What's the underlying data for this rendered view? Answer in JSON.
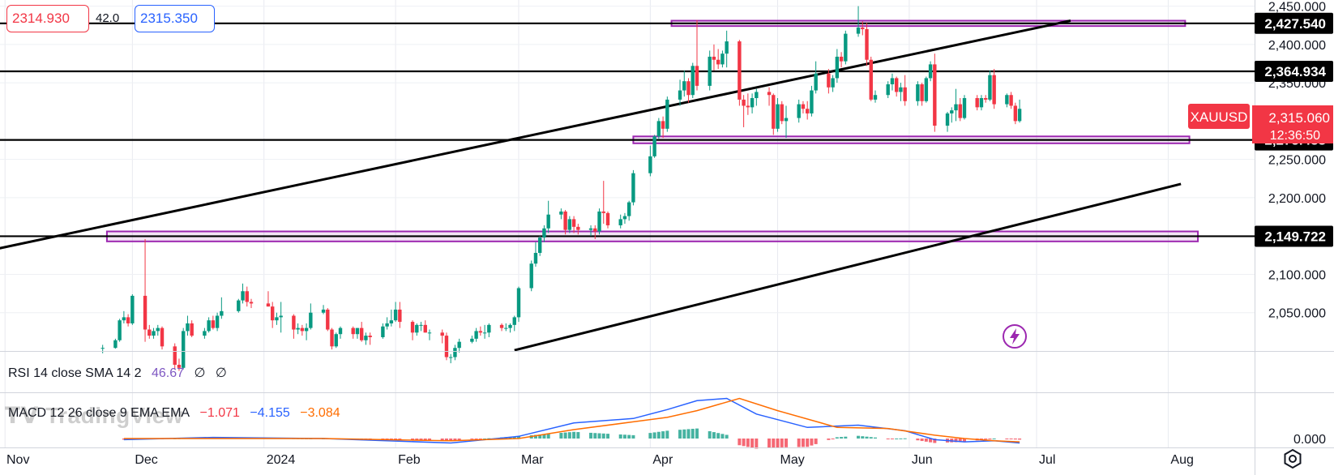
{
  "header": {
    "sell_price": "2314.930",
    "spread": "42.0",
    "buy_price": "2315.350"
  },
  "rsi": {
    "label": "RSI 14 close SMA 14 2",
    "value": "46.67",
    "v2": "∅",
    "v3": "∅"
  },
  "macd": {
    "label": "MACD 12 26 close 9 EMA EMA",
    "hist": "−1.071",
    "macd": "−4.155",
    "signal": "−3.084",
    "zero_label": "0.000"
  },
  "watermark": "TradingView",
  "icons": {
    "flash": "lightning-icon",
    "settings": "gear-icon"
  },
  "colors": {
    "up": "#089981",
    "down": "#f23645",
    "zone": "#9c27b0",
    "level": "#000000",
    "macd_line": "#2962ff",
    "signal_line": "#ff6d00",
    "label_bg": "#000000",
    "symbol_bg": "#f23645"
  },
  "chart_data": {
    "type": "candlestick",
    "symbol": "XAUUSD",
    "last_price": "2,315.060",
    "countdown": "12:36:50",
    "ylim": [
      2000,
      2458
    ],
    "y_ticks": [
      "2,450.000",
      "2,400.000",
      "2,350.000",
      "2,250.000",
      "2,200.000",
      "2,100.000",
      "2,050.000"
    ],
    "x_ticks": [
      "Nov",
      "Dec",
      "2024",
      "Feb",
      "Mar",
      "Apr",
      "May",
      "Jun",
      "Jul",
      "Aug"
    ],
    "levels": [
      "2,427.540",
      "2,364.934",
      "2,275.438",
      "2,149.722"
    ],
    "level_values": [
      2427.54,
      2364.934,
      2275.438,
      2149.722
    ],
    "zones": [
      {
        "from": "2024-04-06",
        "to": "2024-08-05",
        "low": 2424,
        "high": 2431
      },
      {
        "from": "2024-03-28",
        "to": "2024-08-06",
        "low": 2271,
        "high": 2280
      },
      {
        "from": "2023-11-25",
        "to": "2024-08-08",
        "low": 2143,
        "high": 2156
      }
    ],
    "trendlines": [
      {
        "from": [
          "2023-10-29",
          2132
        ],
        "to": [
          "2024-07-09",
          2431
        ]
      },
      {
        "from": [
          "2024-02-29",
          2001
        ],
        "to": [
          "2024-08-04",
          2218
        ]
      }
    ],
    "ohlc": [
      [
        "2023-11-24",
        2003,
        2008,
        1997,
        2004
      ],
      [
        "2023-11-27",
        2004,
        2016,
        2003,
        2014
      ],
      [
        "2023-11-28",
        2014,
        2042,
        2012,
        2040
      ],
      [
        "2023-11-29",
        2040,
        2052,
        2036,
        2044
      ],
      [
        "2023-11-30",
        2044,
        2048,
        2032,
        2036
      ],
      [
        "2023-12-01",
        2036,
        2074,
        2034,
        2072
      ],
      [
        "2023-12-04",
        2072,
        2146,
        2012,
        2028
      ],
      [
        "2023-12-05",
        2028,
        2034,
        2016,
        2020
      ],
      [
        "2023-12-06",
        2020,
        2030,
        2016,
        2026
      ],
      [
        "2023-12-07",
        2026,
        2034,
        2020,
        2030
      ],
      [
        "2023-12-08",
        2030,
        2032,
        2002,
        2006
      ],
      [
        "2023-12-11",
        2006,
        2010,
        1976,
        1982
      ],
      [
        "2023-12-12",
        1982,
        1990,
        1974,
        1978
      ],
      [
        "2023-12-13",
        1978,
        2030,
        1976,
        2026
      ],
      [
        "2023-12-14",
        2026,
        2046,
        2020,
        2036
      ],
      [
        "2023-12-15",
        2036,
        2040,
        2018,
        2020
      ],
      [
        "2023-12-18",
        2020,
        2030,
        2016,
        2026
      ],
      [
        "2023-12-19",
        2026,
        2044,
        2024,
        2040
      ],
      [
        "2023-12-20",
        2040,
        2046,
        2028,
        2030
      ],
      [
        "2023-12-21",
        2030,
        2050,
        2026,
        2046
      ],
      [
        "2023-12-22",
        2046,
        2070,
        2042,
        2052
      ],
      [
        "2023-12-26",
        2052,
        2068,
        2050,
        2066
      ],
      [
        "2023-12-27",
        2066,
        2088,
        2062,
        2078
      ],
      [
        "2023-12-28",
        2078,
        2084,
        2058,
        2064
      ],
      [
        "2023-12-29",
        2064,
        2068,
        2056,
        2062
      ],
      [
        "2024-01-02",
        2062,
        2078,
        2058,
        2058
      ],
      [
        "2024-01-03",
        2058,
        2064,
        2030,
        2040
      ],
      [
        "2024-01-04",
        2040,
        2050,
        2034,
        2044
      ],
      [
        "2024-01-05",
        2044,
        2064,
        2024,
        2046
      ],
      [
        "2024-01-08",
        2046,
        2048,
        2016,
        2028
      ],
      [
        "2024-01-09",
        2028,
        2036,
        2022,
        2030
      ],
      [
        "2024-01-10",
        2030,
        2034,
        2020,
        2026
      ],
      [
        "2024-01-11",
        2026,
        2036,
        2014,
        2030
      ],
      [
        "2024-01-12",
        2030,
        2062,
        2028,
        2050
      ],
      [
        "2024-01-15",
        2050,
        2060,
        2048,
        2054
      ],
      [
        "2024-01-16",
        2054,
        2056,
        2026,
        2028
      ],
      [
        "2024-01-17",
        2028,
        2030,
        2002,
        2006
      ],
      [
        "2024-01-18",
        2006,
        2024,
        2004,
        2022
      ],
      [
        "2024-01-19",
        2022,
        2032,
        2016,
        2030
      ],
      [
        "2024-01-22",
        2030,
        2032,
        2016,
        2022
      ],
      [
        "2024-01-23",
        2022,
        2030,
        2016,
        2030
      ],
      [
        "2024-01-24",
        2030,
        2038,
        2012,
        2014
      ],
      [
        "2024-01-25",
        2014,
        2024,
        2008,
        2020
      ],
      [
        "2024-01-26",
        2020,
        2024,
        2008,
        2018
      ],
      [
        "2024-01-29",
        2018,
        2036,
        2016,
        2032
      ],
      [
        "2024-01-30",
        2032,
        2044,
        2028,
        2036
      ],
      [
        "2024-01-31",
        2036,
        2054,
        2032,
        2040
      ],
      [
        "2024-02-01",
        2040,
        2064,
        2038,
        2054
      ],
      [
        "2024-02-02",
        2054,
        2064,
        2030,
        2038
      ],
      [
        "2024-02-05",
        2038,
        2040,
        2014,
        2024
      ],
      [
        "2024-02-06",
        2024,
        2036,
        2020,
        2034
      ],
      [
        "2024-02-07",
        2034,
        2038,
        2026,
        2034
      ],
      [
        "2024-02-08",
        2034,
        2040,
        2024,
        2024
      ],
      [
        "2024-02-09",
        2024,
        2028,
        2014,
        2024
      ],
      [
        "2024-02-12",
        2024,
        2028,
        2010,
        2020
      ],
      [
        "2024-02-13",
        2020,
        2024,
        1988,
        1992
      ],
      [
        "2024-02-14",
        1992,
        1996,
        1984,
        1992
      ],
      [
        "2024-02-15",
        1992,
        2008,
        1988,
        2004
      ],
      [
        "2024-02-16",
        2004,
        2016,
        1998,
        2012
      ],
      [
        "2024-02-19",
        2012,
        2020,
        2010,
        2016
      ],
      [
        "2024-02-20",
        2016,
        2030,
        2012,
        2026
      ],
      [
        "2024-02-21",
        2026,
        2032,
        2020,
        2024
      ],
      [
        "2024-02-22",
        2024,
        2034,
        2016,
        2024
      ],
      [
        "2024-02-23",
        2024,
        2036,
        2018,
        2034
      ],
      [
        "2024-02-26",
        2034,
        2036,
        2026,
        2030
      ],
      [
        "2024-02-27",
        2030,
        2036,
        2026,
        2030
      ],
      [
        "2024-02-28",
        2030,
        2036,
        2024,
        2034
      ],
      [
        "2024-02-29",
        2034,
        2046,
        2026,
        2044
      ],
      [
        "2024-03-01",
        2044,
        2084,
        2038,
        2082
      ],
      [
        "2024-03-04",
        2082,
        2118,
        2078,
        2114
      ],
      [
        "2024-03-05",
        2114,
        2142,
        2110,
        2128
      ],
      [
        "2024-03-06",
        2128,
        2150,
        2124,
        2148
      ],
      [
        "2024-03-07",
        2148,
        2164,
        2142,
        2160
      ],
      [
        "2024-03-08",
        2160,
        2196,
        2154,
        2178
      ],
      [
        "2024-03-11",
        2178,
        2186,
        2172,
        2182
      ],
      [
        "2024-03-12",
        2182,
        2184,
        2152,
        2158
      ],
      [
        "2024-03-13",
        2158,
        2176,
        2154,
        2172
      ],
      [
        "2024-03-14",
        2172,
        2176,
        2154,
        2162
      ],
      [
        "2024-03-15",
        2162,
        2166,
        2152,
        2158
      ],
      [
        "2024-03-18",
        2158,
        2164,
        2150,
        2160
      ],
      [
        "2024-03-19",
        2160,
        2164,
        2146,
        2156
      ],
      [
        "2024-03-20",
        2156,
        2186,
        2152,
        2182
      ],
      [
        "2024-03-21",
        2182,
        2222,
        2166,
        2180
      ],
      [
        "2024-03-22",
        2180,
        2182,
        2160,
        2164
      ],
      [
        "2024-03-25",
        2164,
        2178,
        2160,
        2172
      ],
      [
        "2024-03-26",
        2172,
        2180,
        2166,
        2176
      ],
      [
        "2024-03-27",
        2176,
        2196,
        2170,
        2194
      ],
      [
        "2024-03-28",
        2194,
        2236,
        2190,
        2232
      ],
      [
        "2024-04-01",
        2232,
        2268,
        2228,
        2254
      ],
      [
        "2024-04-02",
        2254,
        2282,
        2252,
        2280
      ],
      [
        "2024-04-03",
        2280,
        2304,
        2276,
        2300
      ],
      [
        "2024-04-04",
        2300,
        2306,
        2278,
        2290
      ],
      [
        "2024-04-05",
        2290,
        2332,
        2286,
        2328
      ],
      [
        "2024-04-08",
        2328,
        2354,
        2320,
        2340
      ],
      [
        "2024-04-09",
        2340,
        2366,
        2332,
        2352
      ],
      [
        "2024-04-10",
        2352,
        2356,
        2324,
        2334
      ],
      [
        "2024-04-11",
        2334,
        2376,
        2330,
        2372
      ],
      [
        "2024-04-12",
        2372,
        2432,
        2340,
        2346
      ],
      [
        "2024-04-15",
        2346,
        2392,
        2340,
        2384
      ],
      [
        "2024-04-16",
        2384,
        2400,
        2366,
        2380
      ],
      [
        "2024-04-17",
        2380,
        2394,
        2368,
        2374
      ],
      [
        "2024-04-18",
        2374,
        2392,
        2370,
        2388
      ],
      [
        "2024-04-19",
        2388,
        2418,
        2370,
        2404
      ],
      [
        "2024-04-22",
        2404,
        2406,
        2320,
        2328
      ],
      [
        "2024-04-23",
        2328,
        2334,
        2292,
        2320
      ],
      [
        "2024-04-24",
        2320,
        2336,
        2308,
        2318
      ],
      [
        "2024-04-25",
        2318,
        2336,
        2310,
        2330
      ],
      [
        "2024-04-26",
        2330,
        2342,
        2320,
        2338
      ],
      [
        "2024-04-29",
        2338,
        2344,
        2320,
        2334
      ],
      [
        "2024-04-30",
        2334,
        2336,
        2282,
        2290
      ],
      [
        "2024-05-01",
        2290,
        2330,
        2286,
        2322
      ],
      [
        "2024-05-02",
        2322,
        2326,
        2296,
        2300
      ],
      [
        "2024-05-03",
        2300,
        2320,
        2278,
        2304
      ],
      [
        "2024-05-06",
        2304,
        2328,
        2298,
        2322
      ],
      [
        "2024-05-07",
        2322,
        2326,
        2310,
        2316
      ],
      [
        "2024-05-08",
        2316,
        2326,
        2302,
        2310
      ],
      [
        "2024-05-09",
        2310,
        2346,
        2306,
        2340
      ],
      [
        "2024-05-10",
        2340,
        2378,
        2336,
        2362
      ],
      [
        "2024-05-13",
        2362,
        2368,
        2336,
        2344
      ],
      [
        "2024-05-14",
        2344,
        2360,
        2338,
        2356
      ],
      [
        "2024-05-15",
        2356,
        2394,
        2350,
        2384
      ],
      [
        "2024-05-16",
        2384,
        2390,
        2370,
        2378
      ],
      [
        "2024-05-17",
        2378,
        2418,
        2374,
        2414
      ],
      [
        "2024-05-20",
        2414,
        2450,
        2410,
        2422
      ],
      [
        "2024-05-21",
        2422,
        2430,
        2412,
        2420
      ],
      [
        "2024-05-22",
        2420,
        2428,
        2372,
        2380
      ],
      [
        "2024-05-23",
        2380,
        2384,
        2326,
        2328
      ],
      [
        "2024-05-24",
        2328,
        2340,
        2324,
        2334
      ],
      [
        "2024-05-27",
        2334,
        2352,
        2330,
        2348
      ],
      [
        "2024-05-28",
        2348,
        2362,
        2340,
        2356
      ],
      [
        "2024-05-29",
        2356,
        2358,
        2332,
        2338
      ],
      [
        "2024-05-30",
        2338,
        2350,
        2326,
        2344
      ],
      [
        "2024-05-31",
        2344,
        2360,
        2320,
        2326
      ],
      [
        "2024-06-03",
        2326,
        2352,
        2320,
        2348
      ],
      [
        "2024-06-04",
        2348,
        2350,
        2320,
        2326
      ],
      [
        "2024-06-05",
        2326,
        2358,
        2324,
        2356
      ],
      [
        "2024-06-06",
        2356,
        2378,
        2352,
        2374
      ],
      [
        "2024-06-07",
        2374,
        2388,
        2286,
        2294
      ],
      [
        "2024-06-10",
        2294,
        2312,
        2286,
        2310
      ],
      [
        "2024-06-11",
        2310,
        2318,
        2298,
        2314
      ],
      [
        "2024-06-12",
        2314,
        2342,
        2300,
        2322
      ],
      [
        "2024-06-13",
        2322,
        2330,
        2300,
        2304
      ],
      [
        "2024-06-14",
        2304,
        2334,
        2302,
        2330
      ],
      [
        "2024-06-17",
        2330,
        2334,
        2314,
        2318
      ],
      [
        "2024-06-18",
        2318,
        2334,
        2314,
        2330
      ],
      [
        "2024-06-19",
        2330,
        2334,
        2324,
        2328
      ],
      [
        "2024-06-20",
        2328,
        2366,
        2326,
        2360
      ],
      [
        "2024-06-21",
        2360,
        2368,
        2316,
        2322
      ],
      [
        "2024-06-24",
        2322,
        2336,
        2318,
        2334
      ],
      [
        "2024-06-25",
        2334,
        2338,
        2316,
        2320
      ],
      [
        "2024-06-26",
        2320,
        2324,
        2296,
        2300
      ],
      [
        "2024-06-27",
        2300,
        2328,
        2298,
        2316
      ]
    ],
    "macd_line": [
      [
        "2023-11-29",
        -1
      ],
      [
        "2023-12-20",
        1
      ],
      [
        "2024-01-15",
        0
      ],
      [
        "2024-02-14",
        -4
      ],
      [
        "2024-03-01",
        2
      ],
      [
        "2024-03-14",
        14
      ],
      [
        "2024-03-28",
        18
      ],
      [
        "2024-04-05",
        26
      ],
      [
        "2024-04-12",
        34
      ],
      [
        "2024-04-19",
        36
      ],
      [
        "2024-04-26",
        22
      ],
      [
        "2024-05-08",
        10
      ],
      [
        "2024-05-20",
        12
      ],
      [
        "2024-05-31",
        7
      ],
      [
        "2024-06-07",
        -1
      ],
      [
        "2024-06-14",
        -3
      ],
      [
        "2024-06-21",
        -2
      ],
      [
        "2024-06-27",
        -4
      ]
    ],
    "signal_line": [
      [
        "2023-11-29",
        0
      ],
      [
        "2023-12-20",
        0
      ],
      [
        "2024-01-15",
        0
      ],
      [
        "2024-02-14",
        -2
      ],
      [
        "2024-03-01",
        0
      ],
      [
        "2024-03-14",
        8
      ],
      [
        "2024-03-28",
        15
      ],
      [
        "2024-04-05",
        19
      ],
      [
        "2024-04-12",
        25
      ],
      [
        "2024-04-22",
        36
      ],
      [
        "2024-05-01",
        25
      ],
      [
        "2024-05-15",
        10
      ],
      [
        "2024-05-27",
        9
      ],
      [
        "2024-06-07",
        3
      ],
      [
        "2024-06-14",
        0
      ],
      [
        "2024-06-21",
        -2
      ],
      [
        "2024-06-27",
        -3
      ]
    ],
    "macd_ylim": [
      -8,
      40
    ]
  }
}
